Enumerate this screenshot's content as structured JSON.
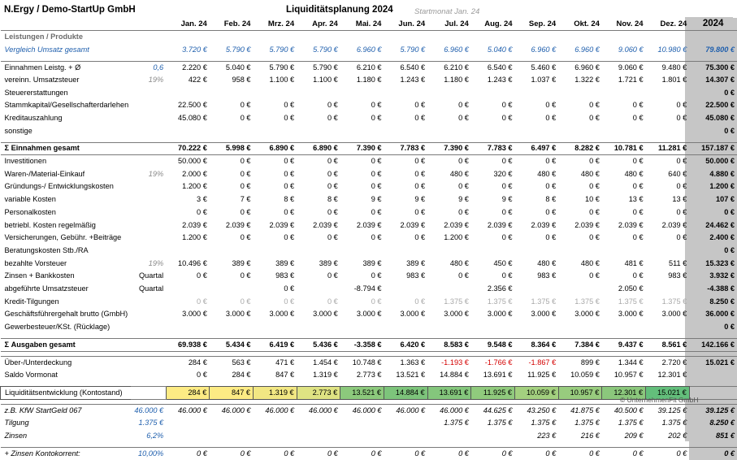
{
  "header": {
    "company": "N.Ergy / Demo-StartUp GmbH",
    "title": "Liquiditätsplanung  2024",
    "start_label": "Startmonat  Jan. 24"
  },
  "months": [
    "Jan. 24",
    "Feb. 24",
    "Mrz. 24",
    "Apr. 24",
    "Mai. 24",
    "Jun. 24",
    "Jul. 24",
    "Aug. 24",
    "Sep. 24",
    "Okt. 24",
    "Nov. 24",
    "Dez. 24"
  ],
  "total_label": "2024",
  "section_title": "Leistungen / Produkte",
  "rows": [
    {
      "id": "vergleich-umsatz",
      "label": "Vergleich Umsatz gesamt",
      "rate": "",
      "style": "blue",
      "values": [
        "3.720 €",
        "5.790 €",
        "5.790 €",
        "5.790 €",
        "6.960 €",
        "5.790 €",
        "6.960 €",
        "5.040 €",
        "6.960 €",
        "6.960 €",
        "9.060 €",
        "10.980 €"
      ],
      "total": "79.800 €"
    },
    {
      "id": "gap1",
      "type": "gap"
    },
    {
      "id": "einnahmen-leistg",
      "label": "Einnahmen Leistg. + Ø",
      "rate": "0,6",
      "rate_style": "blue",
      "style": "btop",
      "values": [
        "2.220 €",
        "5.040 €",
        "5.790 €",
        "5.790 €",
        "6.210 €",
        "6.540 €",
        "6.210 €",
        "6.540 €",
        "5.460 €",
        "6.960 €",
        "9.060 €",
        "9.480 €"
      ],
      "total": "75.300 €"
    },
    {
      "id": "vereinn-ust",
      "label": "vereinn. Umsatzsteuer",
      "rate": "19%",
      "rate_style": "gray",
      "values": [
        "422 €",
        "958 €",
        "1.100 €",
        "1.100 €",
        "1.180 €",
        "1.243 €",
        "1.180 €",
        "1.243 €",
        "1.037 €",
        "1.322 €",
        "1.721 €",
        "1.801 €"
      ],
      "total": "14.307 €"
    },
    {
      "id": "steuererstattungen",
      "label": "Steuererstattungen",
      "rate": "",
      "values": [
        "",
        "",
        "",
        "",
        "",
        "",
        "",
        "",
        "",
        "",
        "",
        ""
      ],
      "total": "0 €"
    },
    {
      "id": "stammkapital",
      "label": "Stammkapital/Gesellschafterdarlehen",
      "rate": "",
      "values": [
        "22.500 €",
        "0 €",
        "0 €",
        "0 €",
        "0 €",
        "0 €",
        "0 €",
        "0 €",
        "0 €",
        "0 €",
        "0 €",
        "0 €"
      ],
      "total": "22.500 €"
    },
    {
      "id": "kreditauszahlung",
      "label": "Kreditauszahlung",
      "rate": "",
      "values": [
        "45.080 €",
        "0 €",
        "0 €",
        "0 €",
        "0 €",
        "0 €",
        "0 €",
        "0 €",
        "0 €",
        "0 €",
        "0 €",
        "0 €"
      ],
      "total": "45.080 €"
    },
    {
      "id": "sonstige",
      "label": "sonstige",
      "rate": "",
      "values": [
        "",
        "",
        "",
        "",
        "",
        "",
        "",
        "",
        "",
        "",
        "",
        ""
      ],
      "total": "0 €"
    },
    {
      "id": "gap2",
      "type": "gap"
    },
    {
      "id": "einnahmen-gesamt",
      "label": "Σ Einnahmen gesamt",
      "rate": "",
      "style": "bold",
      "values": [
        "70.222 €",
        "5.998 €",
        "6.890 €",
        "6.890 €",
        "7.390 €",
        "7.783 €",
        "7.390 €",
        "7.783 €",
        "6.497 €",
        "8.282 €",
        "10.781 €",
        "11.281 €"
      ],
      "total": "157.187 €"
    },
    {
      "id": "investitionen",
      "label": "Investitionen",
      "rate": "",
      "style": "btop",
      "values": [
        "50.000 €",
        "0 €",
        "0 €",
        "0 €",
        "0 €",
        "0 €",
        "0 €",
        "0 €",
        "0 €",
        "0 €",
        "0 €",
        "0 €"
      ],
      "total": "50.000 €"
    },
    {
      "id": "waren-einkauf",
      "label": "Waren-/Material-Einkauf",
      "rate": "19%",
      "rate_style": "gray",
      "values": [
        "2.000 €",
        "0 €",
        "0 €",
        "0 €",
        "0 €",
        "0 €",
        "480 €",
        "320 €",
        "480 €",
        "480 €",
        "480 €",
        "640 €"
      ],
      "total": "4.880 €"
    },
    {
      "id": "gruendungskosten",
      "label": "Gründungs-/ Entwicklungskosten",
      "rate": "",
      "values": [
        "1.200 €",
        "0 €",
        "0 €",
        "0 €",
        "0 €",
        "0 €",
        "0 €",
        "0 €",
        "0 €",
        "0 €",
        "0 €",
        "0 €"
      ],
      "total": "1.200 €"
    },
    {
      "id": "variable-kosten",
      "label": "variable Kosten",
      "rate": "",
      "values": [
        "3 €",
        "7 €",
        "8 €",
        "8 €",
        "9 €",
        "9 €",
        "9 €",
        "9 €",
        "8 €",
        "10 €",
        "13 €",
        "13 €"
      ],
      "total": "107 €"
    },
    {
      "id": "personalkosten",
      "label": "Personalkosten",
      "rate": "",
      "values": [
        "0 €",
        "0 €",
        "0 €",
        "0 €",
        "0 €",
        "0 €",
        "0 €",
        "0 €",
        "0 €",
        "0 €",
        "0 €",
        "0 €"
      ],
      "total": "0 €"
    },
    {
      "id": "betriebl-kosten",
      "label": "betriebl. Kosten regelmäßig",
      "rate": "",
      "values": [
        "2.039 €",
        "2.039 €",
        "2.039 €",
        "2.039 €",
        "2.039 €",
        "2.039 €",
        "2.039 €",
        "2.039 €",
        "2.039 €",
        "2.039 €",
        "2.039 €",
        "2.039 €"
      ],
      "total": "24.462 €"
    },
    {
      "id": "versicherungen",
      "label": "Versicherungen, Gebühr. +Beiträge",
      "rate": "",
      "values": [
        "1.200 €",
        "0 €",
        "0 €",
        "0 €",
        "0 €",
        "0 €",
        "1.200 €",
        "0 €",
        "0 €",
        "0 €",
        "0 €",
        "0 €"
      ],
      "total": "2.400 €"
    },
    {
      "id": "beratungskosten",
      "label": "Beratungskosten Stb./RA",
      "rate": "",
      "values": [
        "",
        "",
        "",
        "",
        "",
        "",
        "",
        "",
        "",
        "",
        "",
        ""
      ],
      "total": "0 €"
    },
    {
      "id": "vorsteuer",
      "label": "bezahlte Vorsteuer",
      "rate": "19%",
      "rate_style": "gray",
      "values": [
        "10.496 €",
        "389 €",
        "389 €",
        "389 €",
        "389 €",
        "389 €",
        "480 €",
        "450 €",
        "480 €",
        "480 €",
        "481 €",
        "511 €"
      ],
      "total": "15.323 €"
    },
    {
      "id": "zinsen-bank",
      "label": "Zinsen + Bankkosten",
      "rate": "Quartal",
      "rate_style": "plain",
      "values": [
        "0 €",
        "0 €",
        "983 €",
        "0 €",
        "0 €",
        "983 €",
        "0 €",
        "0 €",
        "983 €",
        "0 €",
        "0 €",
        "983 €"
      ],
      "total": "3.932 €"
    },
    {
      "id": "abgef-ust",
      "label": "abgeführte Umsatzsteuer",
      "rate": "Quartal",
      "rate_style": "plain",
      "values": [
        "",
        "",
        "0 €",
        "",
        "-8.794 €",
        "",
        "",
        "2.356 €",
        "",
        "",
        "2.050 €",
        ""
      ],
      "total": "-4.388 €"
    },
    {
      "id": "kredit-tilgungen",
      "label": "Kredit-Tilgungen",
      "rate": "",
      "style": "lgray",
      "values": [
        "0 €",
        "0 €",
        "0 €",
        "0 €",
        "0 €",
        "0 €",
        "1.375 €",
        "1.375 €",
        "1.375 €",
        "1.375 €",
        "1.375 €",
        "1.375 €"
      ],
      "total": "8.250 €"
    },
    {
      "id": "gf-gehalt",
      "label": "Geschäftsführergehalt brutto (GmbH)",
      "rate": "",
      "values": [
        "3.000 €",
        "3.000 €",
        "3.000 €",
        "3.000 €",
        "3.000 €",
        "3.000 €",
        "3.000 €",
        "3.000 €",
        "3.000 €",
        "3.000 €",
        "3.000 €",
        "3.000 €"
      ],
      "total": "36.000 €"
    },
    {
      "id": "gewerbesteuer",
      "label": "Gewerbesteuer/KSt. (Rücklage)",
      "rate": "",
      "values": [
        "",
        "",
        "",
        "",
        "",
        "",
        "",
        "",
        "",
        "",
        "",
        ""
      ],
      "total": "0 €"
    },
    {
      "id": "gap3",
      "type": "gap"
    },
    {
      "id": "ausgaben-gesamt",
      "label": "Σ Ausgaben gesamt",
      "rate": "",
      "style": "bold",
      "values": [
        "69.938 €",
        "5.434 €",
        "6.419 €",
        "5.436 €",
        "-3.358 €",
        "6.420 €",
        "8.583 €",
        "9.548 €",
        "8.364 €",
        "7.384 €",
        "9.437 €",
        "8.561 €"
      ],
      "total": "142.166 €"
    },
    {
      "id": "gap4",
      "type": "gap"
    },
    {
      "id": "ueberdeckung",
      "label": "Über-/Unterdeckung",
      "rate": "",
      "style": "btop",
      "values": [
        "284 €",
        "563 €",
        "471 €",
        "1.454 €",
        "10.748 €",
        "1.363 €",
        "-1.193 €",
        "-1.766 €",
        "-1.867 €",
        "899 €",
        "1.344 €",
        "2.720 €"
      ],
      "negative": [
        false,
        false,
        false,
        false,
        false,
        false,
        true,
        true,
        true,
        false,
        false,
        false
      ],
      "total": "15.021 €"
    },
    {
      "id": "saldo-vormonat",
      "label": "Saldo Vormonat",
      "rate": "",
      "values": [
        "0 €",
        "284 €",
        "847 €",
        "1.319 €",
        "2.773 €",
        "13.521 €",
        "14.884 €",
        "13.691 €",
        "11.925 €",
        "10.059 €",
        "10.957 €",
        "12.301 €"
      ],
      "total": ""
    },
    {
      "id": "gap5",
      "type": "gap"
    },
    {
      "id": "liquiditaet",
      "label": "Liquiditätsentwicklung  (Kontostand)",
      "rate": "",
      "style": "liq",
      "values": [
        "284 €",
        "847 €",
        "1.319 €",
        "2.773 €",
        "13.521 €",
        "14.884 €",
        "13.691 €",
        "11.925 €",
        "10.059 €",
        "10.957 €",
        "12.301 €",
        "15.021 €"
      ],
      "total": ""
    },
    {
      "id": "gap6",
      "type": "gap"
    },
    {
      "id": "kfw-startgeld",
      "label": "z.B. KfW StartGeld 067",
      "rate": "46.000 €",
      "rate_style": "blue",
      "style": "ital-btop",
      "values": [
        "46.000 €",
        "46.000 €",
        "46.000 €",
        "46.000 €",
        "46.000 €",
        "46.000 €",
        "46.000 €",
        "44.625 €",
        "43.250 €",
        "41.875 €",
        "40.500 €",
        "39.125 €"
      ],
      "total": "39.125 €"
    },
    {
      "id": "tilgung",
      "label": "Tilgung",
      "rate": "1.375 €",
      "rate_style": "blue",
      "style": "ital",
      "values": [
        "",
        "",
        "",
        "",
        "",
        "",
        "1.375 €",
        "1.375 €",
        "1.375 €",
        "1.375 €",
        "1.375 €",
        "1.375 €"
      ],
      "total": "8.250 €"
    },
    {
      "id": "zinsen",
      "label": "Zinsen",
      "rate": "6,2%",
      "rate_style": "blue",
      "style": "ital",
      "values": [
        "",
        "",
        "",
        "",
        "",
        "",
        "",
        "",
        "223 €",
        "216 €",
        "209 €",
        "202 €"
      ],
      "total": "851 €"
    },
    {
      "id": "gap7",
      "type": "gap"
    },
    {
      "id": "zinsen-kk",
      "label": " + Zinsen Kontokorrent:",
      "rate": "10,00%",
      "rate_style": "blue",
      "style": "ital-btop",
      "values": [
        "0 €",
        "0 €",
        "0 €",
        "0 €",
        "0 €",
        "0 €",
        "0 €",
        "0 €",
        "0 €",
        "0 €",
        "0 €",
        "0 €"
      ],
      "total": "0 €"
    }
  ],
  "liq_colors": [
    "#fdeb84",
    "#fdeb84",
    "#f2e783",
    "#dfe383",
    "#8cc97c",
    "#7dc47b",
    "#84c67c",
    "#90ca7d",
    "#a3d07f",
    "#98cc7e",
    "#8bc77c",
    "#63be7b"
  ],
  "accent": {
    "blue": "#1f5fad",
    "red": "#d40000",
    "total_gray": "#c6c6c6"
  },
  "footer": {
    "copyright": "© UnternehmenFit GmbH"
  }
}
